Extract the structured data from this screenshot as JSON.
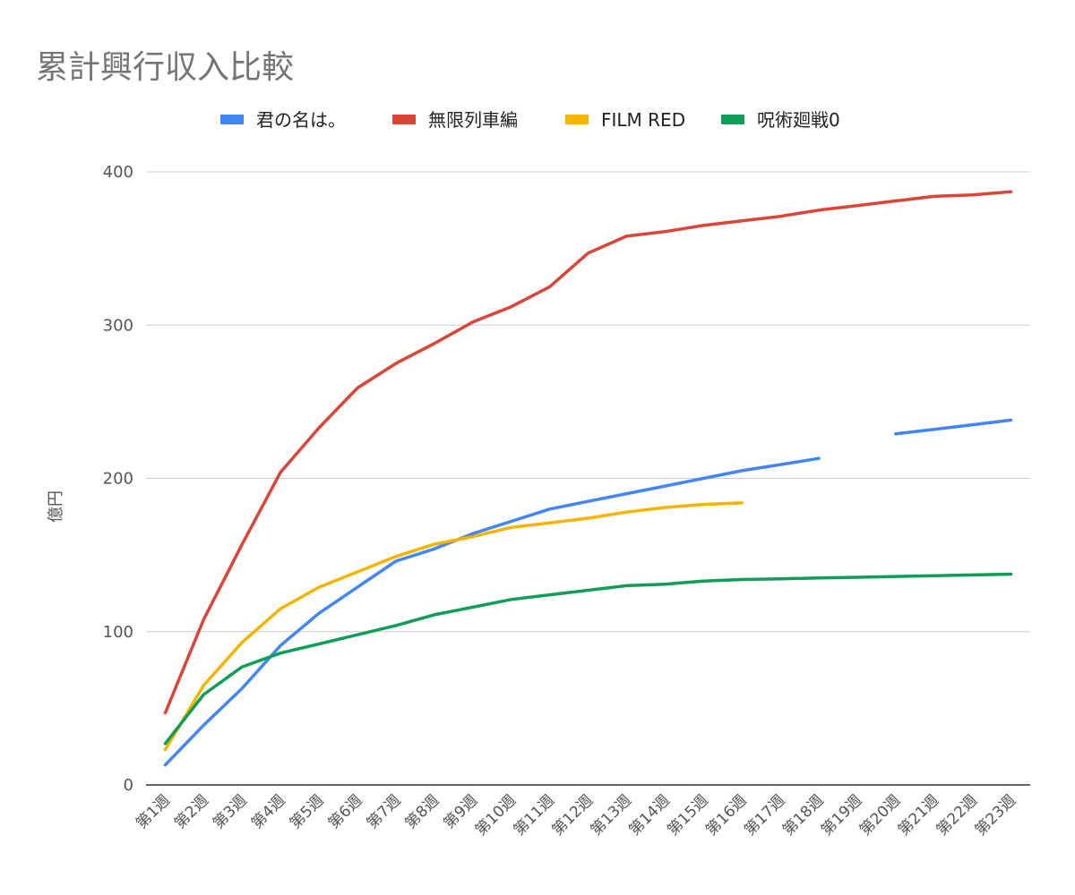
{
  "chart_data": {
    "type": "line",
    "title": "累計興行収入比較",
    "xlabel": "",
    "ylabel": "億円",
    "ylim": [
      0,
      400
    ],
    "yticks": [
      0,
      100,
      200,
      300,
      400
    ],
    "grid": true,
    "legend_position": "top",
    "categories": [
      "第1週",
      "第2週",
      "第3週",
      "第4週",
      "第5週",
      "第6週",
      "第7週",
      "第8週",
      "第9週",
      "第10週",
      "第11週",
      "第12週",
      "第13週",
      "第14週",
      "第15週",
      "第16週",
      "第17週",
      "第18週",
      "第19週",
      "第20週",
      "第21週",
      "第22週",
      "第23週"
    ],
    "series": [
      {
        "name": "君の名は。",
        "color": "#4285f4",
        "values": [
          13,
          39,
          63,
          91,
          112,
          129,
          146,
          154,
          164,
          172,
          180,
          185,
          190,
          195,
          200,
          205,
          209,
          213,
          null,
          229,
          232,
          235,
          238
        ]
      },
      {
        "name": "無限列車編",
        "color": "#db4437",
        "values": [
          47,
          108,
          157,
          204,
          233,
          259,
          275,
          288,
          302,
          312,
          325,
          347,
          358,
          361,
          365,
          368,
          371,
          375,
          378,
          381,
          384,
          385,
          387
        ]
      },
      {
        "name": "FILM RED",
        "color": "#f4b400",
        "values": [
          23,
          65,
          93,
          115,
          129,
          139,
          149,
          157,
          162,
          168,
          171,
          174,
          178,
          181,
          183,
          184,
          null,
          null,
          null,
          null,
          null,
          null,
          null
        ]
      },
      {
        "name": "呪術廻戦0",
        "color": "#0f9d58",
        "values": [
          27,
          59,
          77,
          86,
          92,
          98,
          104,
          111,
          116,
          121,
          124,
          127,
          130,
          131,
          133,
          134,
          134.5,
          135,
          135.5,
          136,
          136.5,
          137,
          137.5
        ]
      }
    ]
  }
}
